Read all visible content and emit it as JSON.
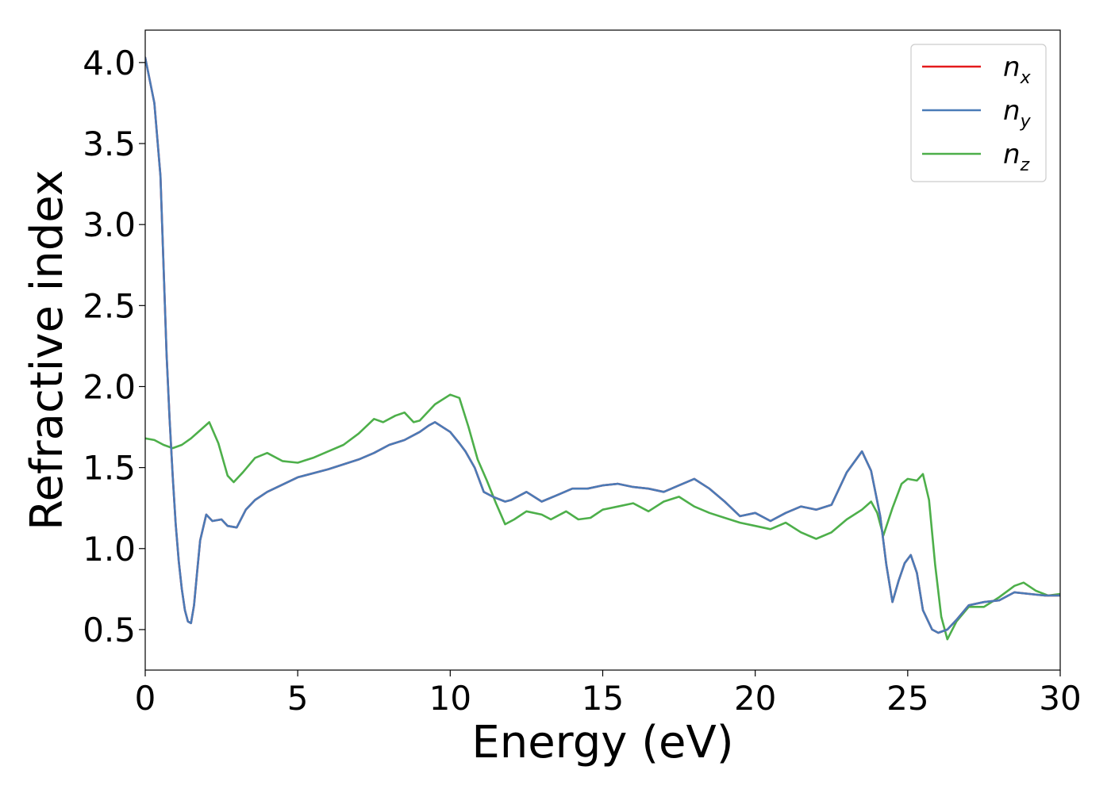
{
  "chart_data": {
    "type": "line",
    "xlabel": "Energy (eV)",
    "ylabel": "Refractive index",
    "xlim": [
      0,
      30
    ],
    "ylim": [
      0.25,
      4.2
    ],
    "xticks": [
      0,
      5,
      10,
      15,
      20,
      25,
      30
    ],
    "xtick_labels": [
      "0",
      "5",
      "10",
      "15",
      "20",
      "25",
      "30"
    ],
    "yticks": [
      0.5,
      1.0,
      1.5,
      2.0,
      2.5,
      3.0,
      3.5,
      4.0
    ],
    "ytick_labels": [
      "0.5",
      "1.0",
      "1.5",
      "2.0",
      "2.5",
      "3.0",
      "3.5",
      "4.0"
    ],
    "grid": false,
    "legend_position": "top-right",
    "series": [
      {
        "name": "n_x",
        "label_base": "n",
        "label_sub": "x",
        "color": "#e41a1c",
        "x": [
          0,
          0.3,
          0.5,
          0.7,
          0.8,
          0.9,
          1.0,
          1.1,
          1.2,
          1.3,
          1.4,
          1.5,
          1.6,
          1.7,
          1.8,
          2.0,
          2.2,
          2.5,
          2.7,
          3.0,
          3.3,
          3.6,
          4.0,
          5.0,
          6.0,
          7.0,
          7.5,
          8.0,
          8.5,
          9.0,
          9.3,
          9.5,
          10.0,
          10.3,
          10.5,
          10.8,
          11.1,
          11.4,
          11.8,
          12.0,
          12.5,
          13.0,
          13.5,
          14.0,
          14.5,
          15.0,
          15.5,
          16.0,
          16.5,
          17.0,
          17.5,
          18.0,
          18.5,
          19.0,
          19.5,
          20.0,
          20.5,
          21.0,
          21.5,
          22.0,
          22.5,
          23.0,
          23.5,
          23.8,
          24.1,
          24.3,
          24.5,
          24.7,
          24.9,
          25.1,
          25.3,
          25.5,
          25.8,
          26.0,
          26.3,
          26.6,
          27.0,
          27.5,
          28.0,
          28.5,
          29.0,
          29.5,
          30.0
        ],
        "y": [
          4.03,
          3.75,
          3.3,
          2.2,
          1.8,
          1.45,
          1.15,
          0.92,
          0.75,
          0.62,
          0.55,
          0.54,
          0.65,
          0.85,
          1.05,
          1.21,
          1.17,
          1.18,
          1.14,
          1.13,
          1.24,
          1.3,
          1.35,
          1.44,
          1.49,
          1.55,
          1.59,
          1.64,
          1.67,
          1.72,
          1.76,
          1.78,
          1.72,
          1.65,
          1.6,
          1.5,
          1.35,
          1.32,
          1.29,
          1.3,
          1.35,
          1.29,
          1.33,
          1.37,
          1.37,
          1.39,
          1.4,
          1.38,
          1.37,
          1.35,
          1.39,
          1.43,
          1.37,
          1.29,
          1.2,
          1.22,
          1.17,
          1.22,
          1.26,
          1.24,
          1.27,
          1.47,
          1.6,
          1.48,
          1.2,
          0.9,
          0.67,
          0.8,
          0.91,
          0.96,
          0.85,
          0.62,
          0.5,
          0.48,
          0.5,
          0.56,
          0.65,
          0.67,
          0.68,
          0.73,
          0.72,
          0.71,
          0.71
        ]
      },
      {
        "name": "n_y",
        "label_base": "n",
        "label_sub": "y",
        "color": "#4a7bb7",
        "x": [
          0,
          0.3,
          0.5,
          0.7,
          0.8,
          0.9,
          1.0,
          1.1,
          1.2,
          1.3,
          1.4,
          1.5,
          1.6,
          1.7,
          1.8,
          2.0,
          2.2,
          2.5,
          2.7,
          3.0,
          3.3,
          3.6,
          4.0,
          5.0,
          6.0,
          7.0,
          7.5,
          8.0,
          8.5,
          9.0,
          9.3,
          9.5,
          10.0,
          10.3,
          10.5,
          10.8,
          11.1,
          11.4,
          11.8,
          12.0,
          12.5,
          13.0,
          13.5,
          14.0,
          14.5,
          15.0,
          15.5,
          16.0,
          16.5,
          17.0,
          17.5,
          18.0,
          18.5,
          19.0,
          19.5,
          20.0,
          20.5,
          21.0,
          21.5,
          22.0,
          22.5,
          23.0,
          23.5,
          23.8,
          24.1,
          24.3,
          24.5,
          24.7,
          24.9,
          25.1,
          25.3,
          25.5,
          25.8,
          26.0,
          26.3,
          26.6,
          27.0,
          27.5,
          28.0,
          28.5,
          29.0,
          29.5,
          30.0
        ],
        "y": [
          4.03,
          3.75,
          3.3,
          2.2,
          1.8,
          1.45,
          1.15,
          0.92,
          0.75,
          0.62,
          0.55,
          0.54,
          0.65,
          0.85,
          1.05,
          1.21,
          1.17,
          1.18,
          1.14,
          1.13,
          1.24,
          1.3,
          1.35,
          1.44,
          1.49,
          1.55,
          1.59,
          1.64,
          1.67,
          1.72,
          1.76,
          1.78,
          1.72,
          1.65,
          1.6,
          1.5,
          1.35,
          1.32,
          1.29,
          1.3,
          1.35,
          1.29,
          1.33,
          1.37,
          1.37,
          1.39,
          1.4,
          1.38,
          1.37,
          1.35,
          1.39,
          1.43,
          1.37,
          1.29,
          1.2,
          1.22,
          1.17,
          1.22,
          1.26,
          1.24,
          1.27,
          1.47,
          1.6,
          1.48,
          1.2,
          0.9,
          0.67,
          0.8,
          0.91,
          0.96,
          0.85,
          0.62,
          0.5,
          0.48,
          0.5,
          0.56,
          0.65,
          0.67,
          0.68,
          0.73,
          0.72,
          0.71,
          0.71
        ]
      },
      {
        "name": "n_z",
        "label_base": "n",
        "label_sub": "z",
        "color": "#4daf4a",
        "x": [
          0,
          0.3,
          0.6,
          0.9,
          1.2,
          1.5,
          1.8,
          2.1,
          2.4,
          2.7,
          2.9,
          3.2,
          3.6,
          4.0,
          4.5,
          5.0,
          5.5,
          6.0,
          6.5,
          7.0,
          7.5,
          7.8,
          8.2,
          8.5,
          8.8,
          9.0,
          9.5,
          10.0,
          10.3,
          10.6,
          10.9,
          11.2,
          11.5,
          11.8,
          12.1,
          12.5,
          13.0,
          13.3,
          13.8,
          14.2,
          14.6,
          15.0,
          15.5,
          16.0,
          16.5,
          17.0,
          17.5,
          18.0,
          18.5,
          19.0,
          19.5,
          20.0,
          20.5,
          21.0,
          21.5,
          22.0,
          22.5,
          23.0,
          23.5,
          23.8,
          24.0,
          24.2,
          24.5,
          24.8,
          25.0,
          25.3,
          25.5,
          25.7,
          25.9,
          26.1,
          26.3,
          26.6,
          27.0,
          27.5,
          28.0,
          28.5,
          28.8,
          29.2,
          29.6,
          30.0
        ],
        "y": [
          1.68,
          1.67,
          1.64,
          1.62,
          1.64,
          1.68,
          1.73,
          1.78,
          1.65,
          1.45,
          1.41,
          1.47,
          1.56,
          1.59,
          1.54,
          1.53,
          1.56,
          1.6,
          1.64,
          1.71,
          1.8,
          1.78,
          1.82,
          1.84,
          1.78,
          1.79,
          1.89,
          1.95,
          1.93,
          1.75,
          1.55,
          1.42,
          1.28,
          1.15,
          1.18,
          1.23,
          1.21,
          1.18,
          1.23,
          1.18,
          1.19,
          1.24,
          1.26,
          1.28,
          1.23,
          1.29,
          1.32,
          1.26,
          1.22,
          1.19,
          1.16,
          1.14,
          1.12,
          1.16,
          1.1,
          1.06,
          1.1,
          1.18,
          1.24,
          1.29,
          1.22,
          1.08,
          1.25,
          1.4,
          1.43,
          1.42,
          1.46,
          1.3,
          0.9,
          0.58,
          0.44,
          0.55,
          0.64,
          0.64,
          0.7,
          0.77,
          0.79,
          0.74,
          0.71,
          0.72
        ]
      }
    ]
  }
}
